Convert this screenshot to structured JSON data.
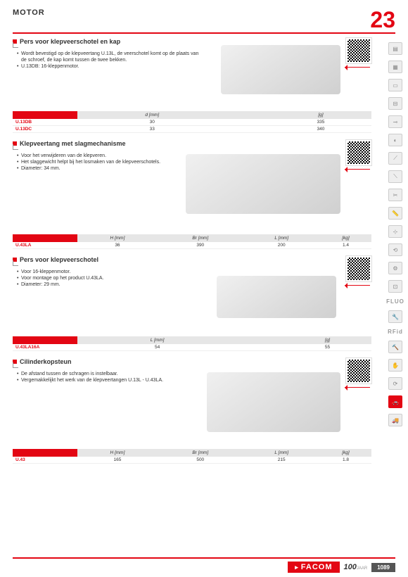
{
  "header": {
    "title": "MOTOR",
    "chapter": "23"
  },
  "sections": [
    {
      "title": "Pers voor klepveerschotel en kap",
      "bullets": [
        "Wordt bevestigd op de klepveertang U.13L, de veerschotel komt op de plaats van de schroef, de kap komt tussen de twee bekken.",
        "U.13DB: 16-kleppenmotor."
      ],
      "table": {
        "headers": [
          "",
          "d [mm]",
          "",
          "[g]"
        ],
        "rows": [
          [
            "U.13DB",
            "30",
            "",
            "335"
          ],
          [
            "U.13DC",
            "33",
            "",
            "340"
          ]
        ]
      }
    },
    {
      "title": "Klepveertang met slagmechanisme",
      "bullets": [
        "Voor het verwijderen van de klepveren.",
        "Het slaggewicht helpt bij het losmaken van de klepveerschotels.",
        "Diameter: 34 mm."
      ],
      "table": {
        "headers": [
          "",
          "H [mm]",
          "Br [mm]",
          "L [mm]",
          "[kg]"
        ],
        "rows": [
          [
            "U.43LA",
            "36",
            "390",
            "200",
            "1.4"
          ]
        ]
      }
    },
    {
      "title": "Pers voor klepveerschotel",
      "bullets": [
        "Voor 16-kleppenmotor.",
        "Voor montage op het product U.43LA.",
        "Diameter: 29 mm."
      ],
      "table": {
        "headers": [
          "",
          "L [mm]",
          "",
          "[g]"
        ],
        "rows": [
          [
            "U.43LA16A",
            "54",
            "",
            "55"
          ]
        ]
      }
    },
    {
      "title": "Cilinderkopsteun",
      "bullets": [
        "De afstand tussen de schragen is instelbaar.",
        "Vergemakkelijkt het werk van de klepveertangen U.13L - U.43LA."
      ],
      "table": {
        "headers": [
          "",
          "H [mm]",
          "Br [mm]",
          "L [mm]",
          "[kg]"
        ],
        "rows": [
          [
            "U.43",
            "165",
            "500",
            "215",
            "1.8"
          ]
        ]
      }
    }
  ],
  "side": {
    "labels": [
      "FLUO",
      "RFid"
    ],
    "icon_count": 20,
    "active_index": 18
  },
  "footer": {
    "brand": "FACOM",
    "years": "100",
    "years_suffix": "JAAR",
    "page": "1089"
  },
  "colors": {
    "accent": "#e30613",
    "gray_bg": "#e6e6e6"
  }
}
